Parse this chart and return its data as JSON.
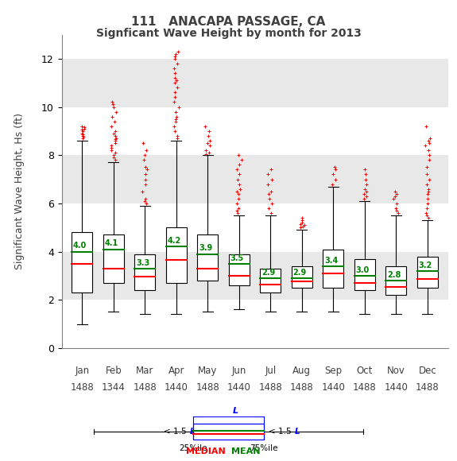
{
  "title1": "111   ANACAPA PASSAGE, CA",
  "title2": "Signficant Wave Height by month for 2013",
  "ylabel": "Significant Wave Height, Hs (ft)",
  "months": [
    "Jan",
    "Feb",
    "Mar",
    "Apr",
    "May",
    "Jun",
    "Jul",
    "Aug",
    "Sep",
    "Oct",
    "Nov",
    "Dec"
  ],
  "counts": [
    "1488",
    "1344",
    "1488",
    "1440",
    "1488",
    "1440",
    "1488",
    "1488",
    "1440",
    "1488",
    "1440",
    "1488"
  ],
  "q1": [
    2.3,
    2.7,
    2.4,
    2.7,
    2.8,
    2.6,
    2.3,
    2.5,
    2.5,
    2.4,
    2.2,
    2.5
  ],
  "median": [
    3.5,
    3.3,
    2.95,
    3.65,
    3.3,
    3.0,
    2.65,
    2.75,
    3.1,
    2.7,
    2.55,
    2.85
  ],
  "q3": [
    4.8,
    4.7,
    3.9,
    5.0,
    4.7,
    3.9,
    3.3,
    3.4,
    4.1,
    3.7,
    3.4,
    3.8
  ],
  "whislo": [
    1.0,
    1.5,
    1.4,
    1.4,
    1.5,
    1.6,
    1.5,
    1.5,
    1.5,
    1.4,
    1.4,
    1.4
  ],
  "whishi": [
    8.6,
    7.7,
    5.9,
    8.6,
    8.0,
    5.5,
    5.5,
    4.9,
    6.7,
    6.1,
    5.5,
    5.3
  ],
  "means": [
    4.0,
    4.1,
    3.3,
    4.2,
    3.9,
    3.5,
    2.9,
    2.9,
    3.4,
    3.0,
    2.8,
    3.2
  ],
  "fliers": [
    [
      8.7,
      8.75,
      8.8,
      8.85,
      8.9,
      9.0,
      9.05,
      9.1,
      9.15,
      9.2
    ],
    [
      7.8,
      7.9,
      8.0,
      8.1,
      8.2,
      8.3,
      8.4,
      8.5,
      8.6,
      8.65,
      8.7,
      8.8,
      8.9,
      9.0,
      9.2,
      9.4,
      9.6,
      9.8,
      10.0,
      10.1,
      10.2
    ],
    [
      6.0,
      6.1,
      6.2,
      6.5,
      6.8,
      7.0,
      7.2,
      7.4,
      7.5,
      7.8,
      8.0,
      8.2,
      8.5
    ],
    [
      8.7,
      8.8,
      9.0,
      9.2,
      9.4,
      9.5,
      9.6,
      9.8,
      10.0,
      10.2,
      10.4,
      10.6,
      10.8,
      11.0,
      11.1,
      11.2,
      11.4,
      11.6,
      11.8,
      12.0,
      12.1,
      12.2,
      12.3
    ],
    [
      8.05,
      8.1,
      8.2,
      8.4,
      8.5,
      8.6,
      8.8,
      9.0,
      9.2
    ],
    [
      5.6,
      5.7,
      5.8,
      6.0,
      6.2,
      6.4,
      6.5,
      6.6,
      6.8,
      7.0,
      7.2,
      7.4,
      7.6,
      7.8,
      8.0
    ],
    [
      5.6,
      5.8,
      6.0,
      6.2,
      6.4,
      6.5,
      6.8,
      7.0,
      7.2,
      7.4
    ],
    [
      5.0,
      5.05,
      5.1,
      5.15,
      5.2,
      5.3,
      5.4
    ],
    [
      6.8,
      7.0,
      7.2,
      7.4,
      7.5
    ],
    [
      6.2,
      6.3,
      6.4,
      6.5,
      6.6,
      6.8,
      7.0,
      7.2,
      7.4
    ],
    [
      5.6,
      5.7,
      5.8,
      6.0,
      6.2,
      6.3,
      6.4,
      6.5
    ],
    [
      5.4,
      5.5,
      5.6,
      5.8,
      6.0,
      6.2,
      6.4,
      6.5,
      6.6,
      6.8,
      7.0,
      7.2,
      7.5,
      7.8,
      8.0,
      8.2,
      8.4,
      8.5,
      8.6,
      8.7,
      9.2
    ]
  ],
  "ylim": [
    0,
    13
  ],
  "yticks": [
    0,
    2,
    4,
    6,
    8,
    10,
    12
  ],
  "band_light": "#e8e8e8",
  "band_white": "#ffffff",
  "median_color": "#ff0000",
  "mean_color": "#008000",
  "flier_color": "#ff0000",
  "whisker_color": "#000000",
  "box_edge_color": "#000000",
  "box_face_color": "#ffffff",
  "title_color": "#404040",
  "axis_color": "#808080"
}
